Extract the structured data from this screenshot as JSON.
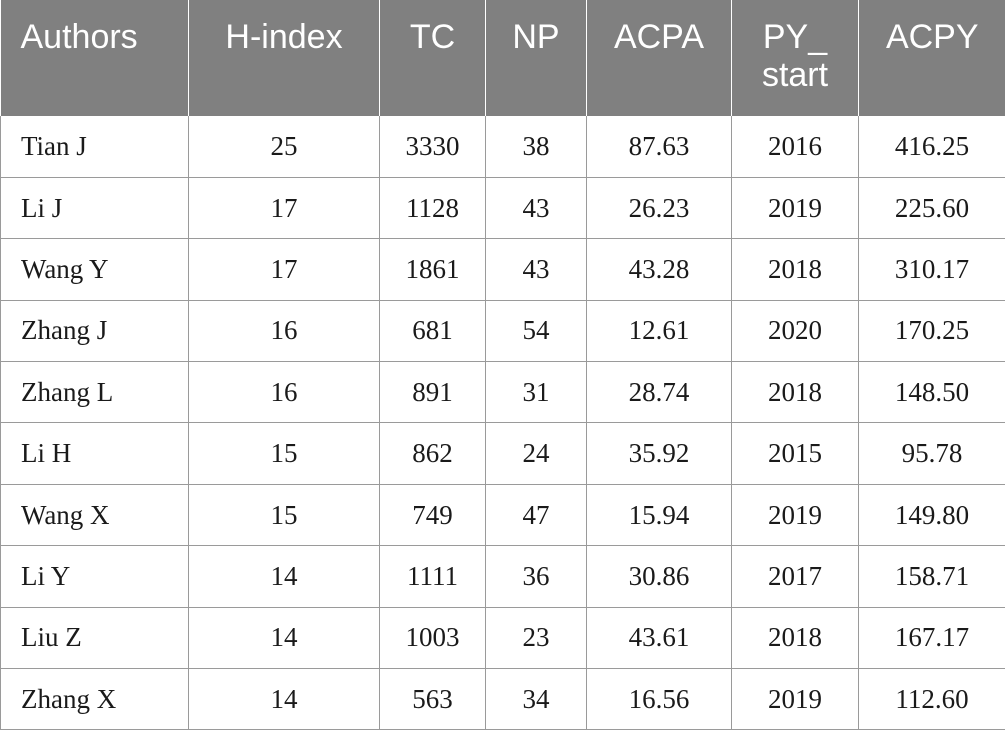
{
  "table": {
    "headers": [
      "Authors",
      "H-index",
      "TC",
      "NP",
      "ACPA",
      "PY_ start",
      "ACPY"
    ],
    "rows": [
      [
        "Tian J",
        "25",
        "3330",
        "38",
        "87.63",
        "2016",
        "416.25"
      ],
      [
        "Li J",
        "17",
        "1128",
        "43",
        "26.23",
        "2019",
        "225.60"
      ],
      [
        "Wang Y",
        "17",
        "1861",
        "43",
        "43.28",
        "2018",
        "310.17"
      ],
      [
        "Zhang J",
        "16",
        "681",
        "54",
        "12.61",
        "2020",
        "170.25"
      ],
      [
        "Zhang L",
        "16",
        "891",
        "31",
        "28.74",
        "2018",
        "148.50"
      ],
      [
        "Li H",
        "15",
        "862",
        "24",
        "35.92",
        "2015",
        "95.78"
      ],
      [
        "Wang X",
        "15",
        "749",
        "47",
        "15.94",
        "2019",
        "149.80"
      ],
      [
        "Li Y",
        "14",
        "1111",
        "36",
        "30.86",
        "2017",
        "158.71"
      ],
      [
        "Liu Z",
        "14",
        "1003",
        "23",
        "43.61",
        "2018",
        "167.17"
      ],
      [
        "Zhang X",
        "14",
        "563",
        "34",
        "16.56",
        "2019",
        "112.60"
      ]
    ]
  },
  "colors": {
    "header_background": "#808080",
    "header_text": "#ffffff",
    "body_text": "#1a1a1a",
    "grid_lines": "#9a9a9a"
  }
}
